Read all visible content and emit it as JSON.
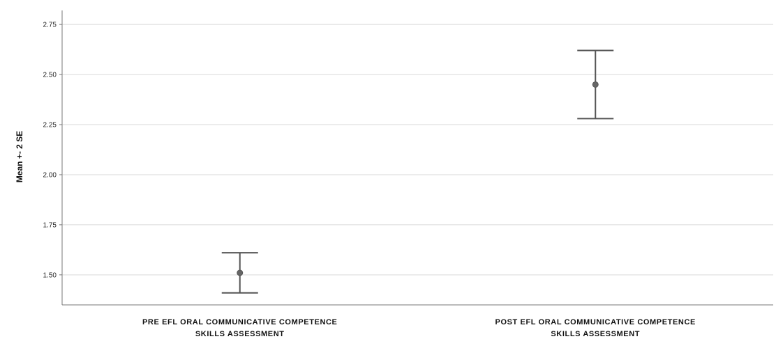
{
  "chart_data": {
    "type": "errorbar",
    "title": "",
    "xlabel": "",
    "ylabel": "Mean +- 2 SE",
    "ylim": [
      1.35,
      2.82
    ],
    "yticks": [
      1.5,
      1.75,
      2.0,
      2.25,
      2.5,
      2.75
    ],
    "ytick_labels": [
      "1.50",
      "1.75",
      "2.00",
      "2.25",
      "2.50",
      "2.75"
    ],
    "grid": true,
    "categories": [
      [
        "PRE EFL ORAL COMMUNICATIVE COMPETENCE",
        "SKILLS ASSESSMENT"
      ],
      [
        "POST EFL ORAL COMMUNICATIVE COMPETENCE",
        "SKILLS ASSESSMENT"
      ]
    ],
    "points": [
      {
        "mean": 1.51,
        "lower": 1.41,
        "upper": 1.61
      },
      {
        "mean": 2.45,
        "lower": 2.28,
        "upper": 2.62
      }
    ],
    "colors": {
      "marker": "#666666",
      "bar": "#555555",
      "grid": "#d9d9d9",
      "axis": "#777777"
    }
  }
}
